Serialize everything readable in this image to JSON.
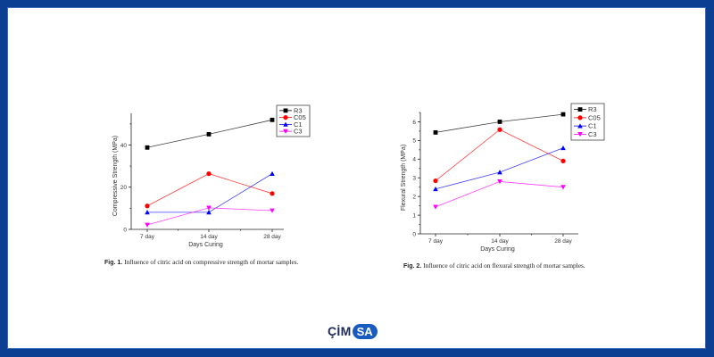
{
  "logo": {
    "text": "ÇİM",
    "pill_text": "SA",
    "pill_color": "#1a5bbf"
  },
  "frame_color": "#0b3f92",
  "captions": [
    {
      "label": "Fig. 1.",
      "text": "Influence of citric acid on compressive strength of mortar samples."
    },
    {
      "label": "Fig. 2.",
      "text": "Influence of citric acid on flexural strength of mortar samples."
    }
  ],
  "chart_data": [
    {
      "type": "line",
      "title": "",
      "xlabel": "Days Curing",
      "ylabel": "Compressive Strength (MPa)",
      "categories": [
        "7 day",
        "14 day",
        "28 day"
      ],
      "ylim": [
        0,
        55
      ],
      "yticks": [
        0,
        20,
        40
      ],
      "yminor": 10,
      "grid": false,
      "legend": "top-right",
      "series": [
        {
          "name": "R3",
          "color": "#000000",
          "marker": "square",
          "values": [
            38.8,
            45.1,
            51.9
          ]
        },
        {
          "name": "C05",
          "color": "#ff0000",
          "marker": "circle",
          "values": [
            11.1,
            26.4,
            17.0
          ]
        },
        {
          "name": "C1",
          "color": "#0000ff",
          "marker": "triangle-up",
          "values": [
            8.1,
            8.1,
            26.4
          ]
        },
        {
          "name": "C3",
          "color": "#ff00ff",
          "marker": "triangle-down",
          "values": [
            2.1,
            10.2,
            8.9
          ]
        }
      ]
    },
    {
      "type": "line",
      "title": "",
      "xlabel": "Days Curing",
      "ylabel": "Flexural Strength (MPa)",
      "categories": [
        "7 day",
        "14 day",
        "28 day"
      ],
      "ylim": [
        0,
        6.5
      ],
      "yticks": [
        0,
        1,
        2,
        3,
        4,
        5,
        6
      ],
      "yminor": 0.5,
      "grid": false,
      "legend": "top-right",
      "series": [
        {
          "name": "R3",
          "color": "#000000",
          "marker": "square",
          "values": [
            5.43,
            6.0,
            6.4
          ]
        },
        {
          "name": "C05",
          "color": "#ff0000",
          "marker": "circle",
          "values": [
            2.84,
            5.58,
            3.9
          ]
        },
        {
          "name": "C1",
          "color": "#0000ff",
          "marker": "triangle-up",
          "values": [
            2.4,
            3.3,
            4.6
          ]
        },
        {
          "name": "C3",
          "color": "#ff00ff",
          "marker": "triangle-down",
          "values": [
            1.44,
            2.8,
            2.5
          ]
        }
      ]
    }
  ]
}
